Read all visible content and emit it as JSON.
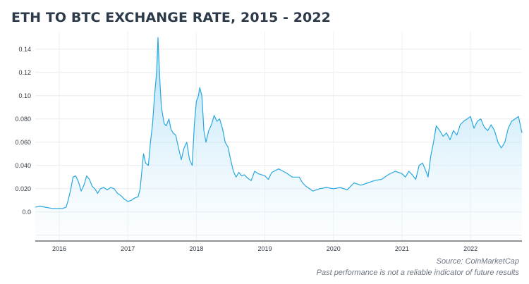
{
  "chart_data": {
    "type": "area",
    "title": "ETH TO BTC EXCHANGE RATE, 2015 - 2022",
    "xlabel": "",
    "ylabel": "",
    "x_ticks": [
      "2016",
      "2017",
      "2018",
      "2019",
      "2020",
      "2021",
      "2022"
    ],
    "y_ticks": [
      "0.0",
      "0.020",
      "0.040",
      "0.060",
      "0.080",
      "0.10",
      "0.12",
      "0.14"
    ],
    "ylim": [
      -0.025,
      0.155
    ],
    "xlim": [
      2015.65,
      2022.75
    ],
    "grid": true,
    "legend": "none",
    "line_color": "#29a8e0",
    "fill_top_color": "#a9dcf5",
    "series": [
      {
        "x": [
          2015.65,
          2015.72,
          2015.8,
          2015.9,
          2016.0,
          2016.05,
          2016.1,
          2016.13,
          2016.17,
          2016.2,
          2016.24,
          2016.28,
          2016.32,
          2016.36,
          2016.4,
          2016.44,
          2016.48,
          2016.52,
          2016.56,
          2016.6,
          2016.65,
          2016.7,
          2016.75,
          2016.8,
          2016.85,
          2016.9,
          2016.95,
          2017.0,
          2017.05,
          2017.1,
          2017.15,
          2017.18,
          2017.2,
          2017.23,
          2017.26,
          2017.3,
          2017.33,
          2017.36,
          2017.39,
          2017.42,
          2017.44,
          2017.455,
          2017.47,
          2017.49,
          2017.51,
          2017.53,
          2017.56,
          2017.6,
          2017.63,
          2017.66,
          2017.7,
          2017.74,
          2017.78,
          2017.82,
          2017.86,
          2017.9,
          2017.94,
          2017.97,
          2018.0,
          2018.03,
          2018.05,
          2018.08,
          2018.11,
          2018.14,
          2018.18,
          2018.22,
          2018.26,
          2018.3,
          2018.34,
          2018.38,
          2018.42,
          2018.46,
          2018.5,
          2018.54,
          2018.58,
          2018.62,
          2018.66,
          2018.7,
          2018.75,
          2018.8,
          2018.85,
          2018.9,
          2018.95,
          2019.0,
          2019.05,
          2019.1,
          2019.2,
          2019.3,
          2019.4,
          2019.5,
          2019.55,
          2019.6,
          2019.7,
          2019.8,
          2019.9,
          2020.0,
          2020.1,
          2020.2,
          2020.3,
          2020.4,
          2020.5,
          2020.6,
          2020.7,
          2020.8,
          2020.9,
          2021.0,
          2021.05,
          2021.1,
          2021.15,
          2021.2,
          2021.25,
          2021.3,
          2021.35,
          2021.38,
          2021.42,
          2021.46,
          2021.5,
          2021.55,
          2021.6,
          2021.65,
          2021.7,
          2021.75,
          2021.8,
          2021.85,
          2021.9,
          2021.95,
          2022.0,
          2022.05,
          2022.1,
          2022.15,
          2022.2,
          2022.25,
          2022.3,
          2022.35,
          2022.4,
          2022.45,
          2022.5,
          2022.55,
          2022.6,
          2022.65,
          2022.7,
          2022.75
        ],
        "values": [
          0.004,
          0.005,
          0.004,
          0.003,
          0.003,
          0.003,
          0.004,
          0.01,
          0.02,
          0.03,
          0.031,
          0.026,
          0.018,
          0.023,
          0.031,
          0.028,
          0.022,
          0.02,
          0.016,
          0.02,
          0.021,
          0.019,
          0.021,
          0.02,
          0.016,
          0.014,
          0.011,
          0.009,
          0.01,
          0.012,
          0.013,
          0.02,
          0.032,
          0.05,
          0.042,
          0.04,
          0.06,
          0.075,
          0.1,
          0.12,
          0.15,
          0.13,
          0.11,
          0.09,
          0.083,
          0.076,
          0.074,
          0.08,
          0.071,
          0.068,
          0.066,
          0.055,
          0.045,
          0.055,
          0.06,
          0.045,
          0.04,
          0.075,
          0.095,
          0.1,
          0.107,
          0.1,
          0.07,
          0.06,
          0.07,
          0.075,
          0.083,
          0.078,
          0.08,
          0.072,
          0.06,
          0.056,
          0.045,
          0.035,
          0.03,
          0.034,
          0.031,
          0.032,
          0.029,
          0.027,
          0.035,
          0.033,
          0.032,
          0.031,
          0.028,
          0.034,
          0.037,
          0.034,
          0.03,
          0.03,
          0.025,
          0.022,
          0.018,
          0.02,
          0.021,
          0.02,
          0.021,
          0.019,
          0.025,
          0.023,
          0.025,
          0.027,
          0.028,
          0.032,
          0.035,
          0.033,
          0.03,
          0.035,
          0.032,
          0.028,
          0.04,
          0.042,
          0.035,
          0.03,
          0.048,
          0.06,
          0.074,
          0.07,
          0.065,
          0.068,
          0.062,
          0.07,
          0.066,
          0.075,
          0.078,
          0.08,
          0.082,
          0.072,
          0.078,
          0.08,
          0.073,
          0.07,
          0.075,
          0.07,
          0.06,
          0.055,
          0.06,
          0.072,
          0.078,
          0.08,
          0.082,
          0.068
        ]
      }
    ]
  },
  "footer": {
    "source": "Source: CoinMarketCap",
    "disclaimer": "Past performance is not a reliable indicator of future results"
  }
}
